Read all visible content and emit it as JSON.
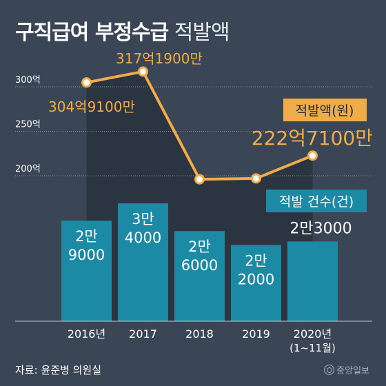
{
  "title_bold": "구직급여 부정수급",
  "title_light": "적발액",
  "source": "자료: 윤준병 의원실",
  "publisher": "중앙일보",
  "chart_data": [
    {
      "type": "bar",
      "legend_label": "적발 건수(건)",
      "categories": [
        "2016년",
        "2017",
        "2018",
        "2019",
        "2020년"
      ],
      "category_sublabels": [
        "",
        "",
        "",
        "",
        "(1~11월)"
      ],
      "values": [
        29000,
        34000,
        26000,
        22000,
        23000
      ],
      "value_labels": [
        [
          "2만",
          "9000"
        ],
        [
          "3만",
          "4000"
        ],
        [
          "2만",
          "6000"
        ],
        [
          "2만",
          "2000"
        ],
        [
          "2만3000"
        ]
      ],
      "colors": {
        "bar": "#1d8aa5",
        "legend_box": "#1d8aa5"
      }
    },
    {
      "type": "line",
      "legend_label": "적발액(원)",
      "x": [
        "2016년",
        "2017",
        "2018",
        "2019",
        "2020년"
      ],
      "values": [
        304.91,
        317.19,
        196.0,
        197.0,
        222.71
      ],
      "y_ticks": [
        "300억",
        "250억",
        "200억"
      ],
      "y_tick_values": [
        300,
        250,
        200
      ],
      "data_labels": [
        "304억9100만",
        "317억1900만",
        "",
        "",
        "222억7100만"
      ],
      "colors": {
        "line": "#f1ac4a",
        "marker_fill": "#ffffff",
        "legend_box": "#f1ac4a",
        "area": "#2b3441"
      }
    }
  ]
}
